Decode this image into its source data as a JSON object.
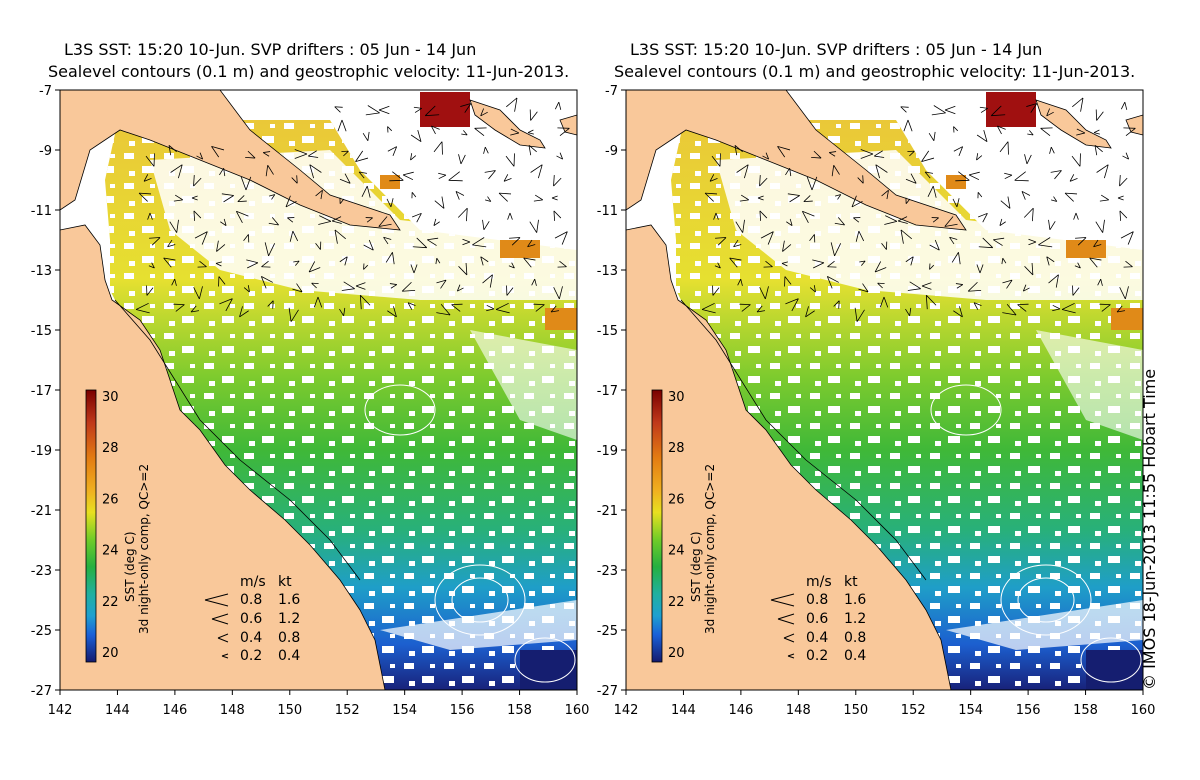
{
  "panels": [
    {
      "title_line1": "L3S SST: 15:20 10-Jun. SVP drifters : 05 Jun - 14 Jun",
      "title_line2": "Sealevel contours (0.1 m) and geostrophic velocity: 11-Jun-2013."
    },
    {
      "title_line1": "L3S SST: 15:20 10-Jun. SVP drifters : 05 Jun - 14 Jun",
      "title_line2": "Sealevel contours (0.1 m) and geostrophic velocity: 11-Jun-2013."
    }
  ],
  "axes": {
    "lon_ticks": [
      "142",
      "144",
      "146",
      "148",
      "150",
      "152",
      "154",
      "156",
      "158",
      "160"
    ],
    "lat_ticks": [
      "-7",
      "-9",
      "-11",
      "-13",
      "-15",
      "-17",
      "-19",
      "-21",
      "-23",
      "-25",
      "-27"
    ]
  },
  "colorbar": {
    "ticks": [
      "30",
      "28",
      "26",
      "24",
      "22",
      "20"
    ],
    "label_line1": "SST (deg C)",
    "label_line2": "3d night-only comp, QC>=2",
    "colors": [
      "#7a0000",
      "#c0391a",
      "#e37c12",
      "#f0b020",
      "#e8e020",
      "#9ad62a",
      "#35b830",
      "#20b080",
      "#1ea0c8",
      "#1a6fd8",
      "#1c3aa8",
      "#141a6e"
    ]
  },
  "velocity_legend": {
    "header_ms": "m/s",
    "header_kt": "kt",
    "rows": [
      {
        "ms": "0.8",
        "kt": "1.6"
      },
      {
        "ms": "0.6",
        "kt": "1.2"
      },
      {
        "ms": "0.4",
        "kt": "0.8"
      },
      {
        "ms": "0.2",
        "kt": "0.4"
      }
    ]
  },
  "colors": {
    "land": "#f9c89a",
    "no_data": "#ffffff"
  },
  "credit": "© IMOS 18-Jun-2013 11:55 Hobart Time"
}
